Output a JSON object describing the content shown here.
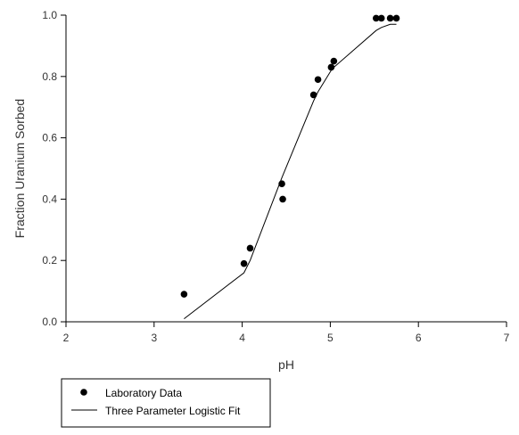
{
  "chart_data": {
    "type": "scatter",
    "xlabel": "pH",
    "ylabel": "Fraction Uranium Sorbed",
    "xlim": [
      2,
      7
    ],
    "ylim": [
      0,
      1.0
    ],
    "x_ticks": [
      "2",
      "3",
      "4",
      "5",
      "6",
      "7"
    ],
    "y_ticks": [
      "0.0",
      "0.2",
      "0.4",
      "0.6",
      "0.8",
      "1.0"
    ],
    "grid": false,
    "legend_position": "bottom-left",
    "series": [
      {
        "name": "Laboratory Data",
        "kind": "scatter",
        "color": "#000000",
        "points": [
          {
            "x": 3.34,
            "y": 0.09
          },
          {
            "x": 4.02,
            "y": 0.19
          },
          {
            "x": 4.09,
            "y": 0.24
          },
          {
            "x": 4.45,
            "y": 0.45
          },
          {
            "x": 4.46,
            "y": 0.4
          },
          {
            "x": 4.81,
            "y": 0.74
          },
          {
            "x": 4.86,
            "y": 0.79
          },
          {
            "x": 5.01,
            "y": 0.83
          },
          {
            "x": 5.04,
            "y": 0.85
          },
          {
            "x": 5.52,
            "y": 0.99
          },
          {
            "x": 5.58,
            "y": 0.99
          },
          {
            "x": 5.68,
            "y": 0.99
          },
          {
            "x": 5.75,
            "y": 0.99
          }
        ]
      },
      {
        "name": "Three Parameter Logistic Fit",
        "kind": "line",
        "color": "#000000",
        "points": [
          {
            "x": 3.34,
            "y": 0.01
          },
          {
            "x": 4.02,
            "y": 0.16
          },
          {
            "x": 4.09,
            "y": 0.2
          },
          {
            "x": 4.45,
            "y": 0.47
          },
          {
            "x": 4.81,
            "y": 0.72
          },
          {
            "x": 4.86,
            "y": 0.75
          },
          {
            "x": 5.01,
            "y": 0.82
          },
          {
            "x": 5.04,
            "y": 0.83
          },
          {
            "x": 5.52,
            "y": 0.95
          },
          {
            "x": 5.58,
            "y": 0.96
          },
          {
            "x": 5.68,
            "y": 0.97
          },
          {
            "x": 5.75,
            "y": 0.97
          }
        ]
      }
    ]
  }
}
